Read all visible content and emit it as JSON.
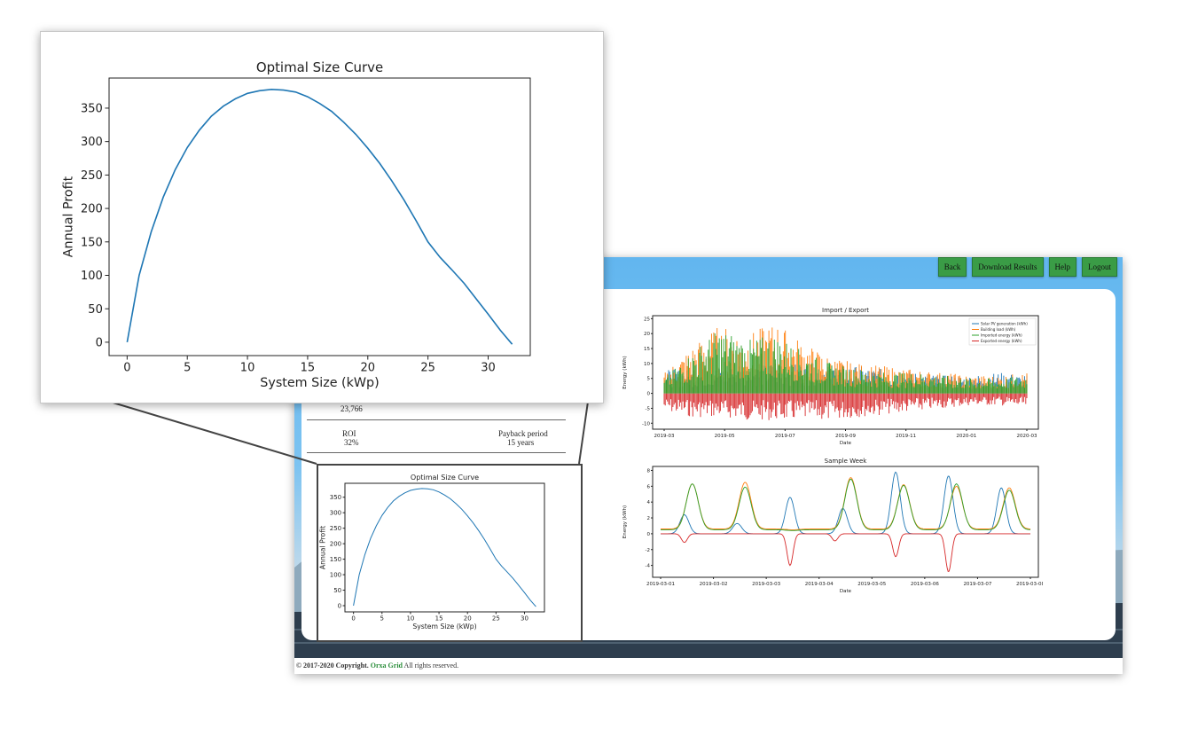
{
  "nav": {
    "back": "Back",
    "download": "Download Results",
    "help": "Help",
    "logout": "Logout"
  },
  "stats": {
    "partial_value": "23,766",
    "roi_label": "ROI",
    "roi_value": "32%",
    "payback_label": "Payback period",
    "payback_value": "15 years"
  },
  "footer": {
    "copyright": "© 2017-2020 Copyright.",
    "brand": "Orxa Grid",
    "rights": "All rights reserved."
  },
  "colors": {
    "accent_green": "#3a9c46",
    "solar": "#1f77b4",
    "load": "#ff7f0e",
    "import": "#2ca02c",
    "export": "#d62728"
  },
  "chart_data": [
    {
      "type": "line",
      "title": "Optimal Size Curve",
      "xlabel": "System Size (kWp)",
      "ylabel": "Annual Profit",
      "xlim": [
        -1.5,
        33.5
      ],
      "ylim": [
        -20,
        395
      ],
      "xticks": [
        0,
        5,
        10,
        15,
        20,
        25,
        30
      ],
      "yticks": [
        0,
        50,
        100,
        150,
        200,
        250,
        300,
        350
      ],
      "series": [
        {
          "x": [
            0,
            1,
            2,
            3,
            4,
            5,
            6,
            7,
            8,
            9,
            10,
            11,
            12,
            13,
            14,
            15,
            16,
            17,
            18,
            19,
            20,
            21,
            22,
            23,
            24,
            25,
            26,
            27,
            28,
            29,
            30,
            31,
            32
          ],
          "values": [
            0,
            100,
            165,
            217,
            258,
            291,
            317,
            338,
            353,
            364,
            372,
            376,
            378,
            377,
            374,
            367,
            357,
            345,
            329,
            311,
            290,
            267,
            241,
            213,
            182,
            150,
            127,
            108,
            88,
            65,
            42,
            18,
            -3
          ]
        }
      ]
    },
    {
      "type": "line",
      "title": "Import / Export",
      "xlabel": "Date",
      "ylabel": "Energy (kWh)",
      "ylim": [
        -12,
        26
      ],
      "xticks": [
        "2019-03",
        "2019-05",
        "2019-07",
        "2019-09",
        "2019-11",
        "2020-01",
        "2020-03"
      ],
      "yticks": [
        -10,
        -5,
        0,
        5,
        10,
        15,
        20,
        25
      ],
      "series": [
        {
          "name": "Solar PV generation (kWh)",
          "values": [
            8,
            8,
            9,
            9,
            10,
            10,
            10,
            9,
            8,
            7,
            6,
            6,
            7,
            6
          ]
        },
        {
          "name": "Building load (kWh)",
          "values": [
            7,
            16,
            23,
            20,
            24,
            17,
            12,
            10,
            9,
            8,
            7,
            6,
            6,
            7
          ]
        },
        {
          "name": "Imported energy (kWh)",
          "values": [
            5,
            14,
            22,
            18,
            20,
            14,
            10,
            8,
            7,
            7,
            6,
            5,
            5,
            6
          ]
        },
        {
          "name": "Exported energy (kWh)",
          "values": [
            -6,
            -8,
            -8,
            -9,
            -9,
            -9,
            -9,
            -8,
            -7,
            -6,
            -5,
            -4,
            -4,
            -5
          ]
        }
      ]
    },
    {
      "type": "line",
      "title": "Sample Week",
      "xlabel": "Date",
      "ylabel": "Energy (kWh)",
      "ylim": [
        -5.5,
        8.5
      ],
      "xticks": [
        "2019-03-01",
        "2019-03-02",
        "2019-03-03",
        "2019-03-04",
        "2019-03-05",
        "2019-03-06",
        "2019-03-07",
        "2019-03-08"
      ],
      "yticks": [
        -4,
        -2,
        0,
        2,
        4,
        6,
        8
      ],
      "series": [
        {
          "name": "Solar PV generation (kWh)",
          "peaks": [
            [
              0.45,
              2.4
            ],
            [
              1.45,
              1.3
            ],
            [
              2.45,
              4.6
            ],
            [
              3.45,
              3.2
            ],
            [
              4.45,
              7.8
            ],
            [
              5.45,
              7.3
            ],
            [
              6.45,
              5.8
            ]
          ]
        },
        {
          "name": "Building load (kWh)",
          "peaks": [
            [
              0.6,
              6.3
            ],
            [
              1.6,
              6.5
            ],
            [
              2.5,
              0.5
            ],
            [
              3.6,
              7.1
            ],
            [
              4.6,
              6.2
            ],
            [
              5.6,
              6.0
            ],
            [
              6.6,
              5.8
            ]
          ]
        },
        {
          "name": "Imported energy (kWh)",
          "peaks": [
            [
              0.6,
              6.3
            ],
            [
              1.6,
              5.9
            ],
            [
              2.5,
              0.4
            ],
            [
              3.6,
              6.9
            ],
            [
              4.6,
              6.1
            ],
            [
              5.6,
              6.3
            ],
            [
              6.6,
              5.5
            ]
          ]
        },
        {
          "name": "Exported energy (kWh)",
          "peaks": [
            [
              0.45,
              -1.1
            ],
            [
              2.45,
              -4.0
            ],
            [
              3.3,
              -0.9
            ],
            [
              4.45,
              -2.9
            ],
            [
              5.45,
              -4.8
            ]
          ]
        }
      ]
    }
  ]
}
